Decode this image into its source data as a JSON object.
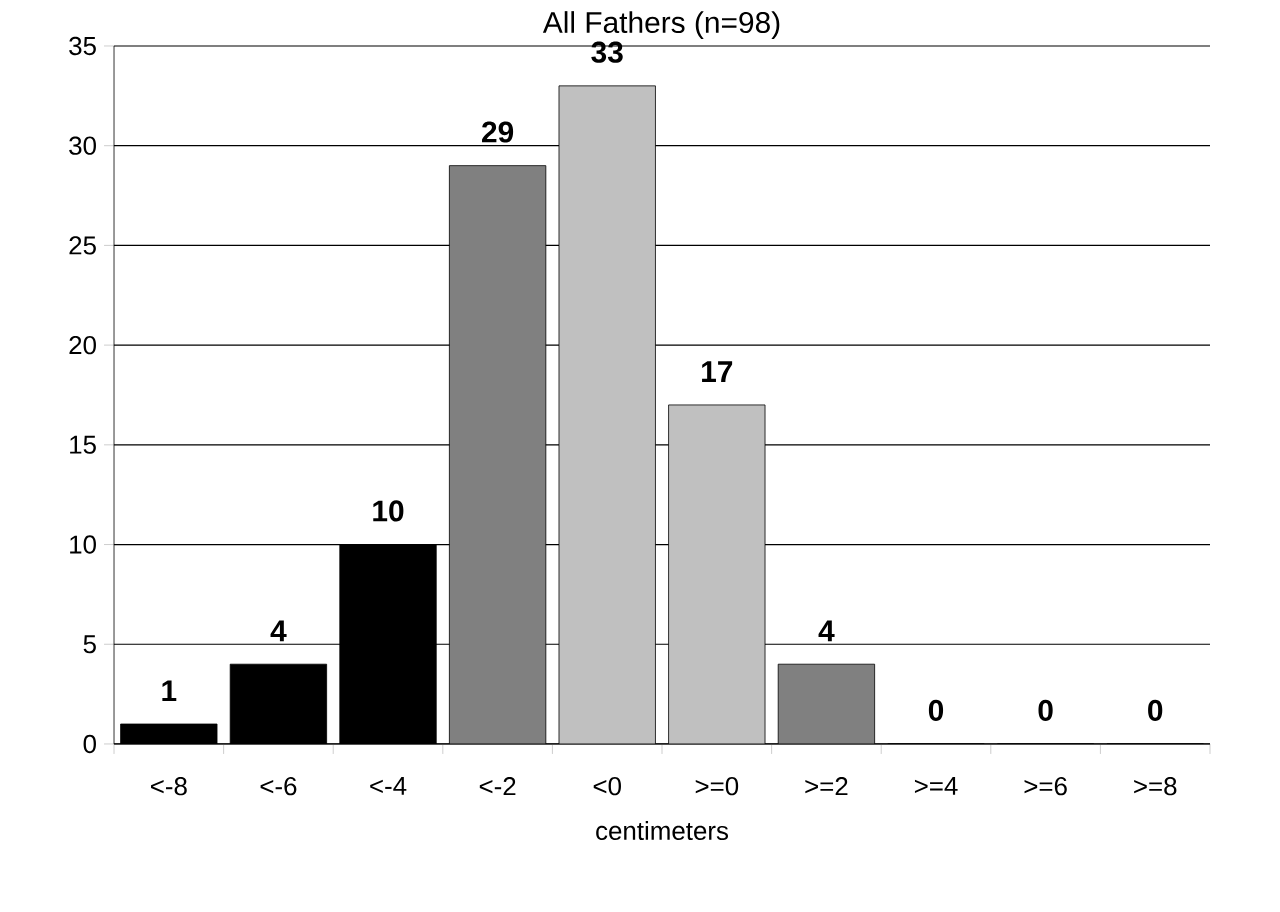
{
  "chart_data": {
    "type": "bar",
    "title": "All Fathers (n=98)",
    "xlabel": "centimeters",
    "categories": [
      "<-8",
      "<-6",
      "<-4",
      "<-2",
      "<0",
      ">=0",
      ">=2",
      ">=4",
      ">=6",
      ">=8"
    ],
    "values": [
      1,
      4,
      10,
      29,
      33,
      17,
      4,
      0,
      0,
      0
    ],
    "colors": [
      "#000000",
      "#000000",
      "#000000",
      "#808080",
      "#c0c0c0",
      "#c0c0c0",
      "#808080",
      "#808080",
      "#808080",
      "#808080"
    ],
    "ylim": [
      0,
      35
    ],
    "yticks": [
      0,
      5,
      10,
      15,
      20,
      25,
      30,
      35
    ],
    "grid": "y",
    "data_labels": true
  }
}
